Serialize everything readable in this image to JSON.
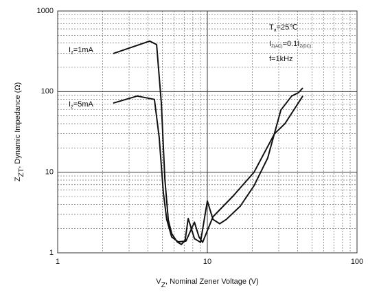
{
  "chart_data": {
    "type": "line",
    "xlabel": [
      "V",
      "Z",
      ", Nominal Zener Voltage (V)"
    ],
    "ylabel": [
      "Z",
      "ZT",
      ", Dynamic Impedance (Ω)"
    ],
    "xscale": "log",
    "yscale": "log",
    "grid": true,
    "xlim": [
      1,
      100
    ],
    "xticks": [
      1,
      10,
      100
    ],
    "ylim": [
      1,
      1000
    ],
    "yticks": [
      1,
      10,
      100,
      1000
    ],
    "annotations": [
      [
        "I",
        "z",
        "=1mA"
      ],
      [
        "I",
        "z",
        "=5mA"
      ],
      [
        "T",
        "a",
        "=25℃"
      ],
      [
        "I",
        "Z(AC)",
        "=0.1I",
        "Z(DC)"
      ],
      [
        "f=1kHz"
      ]
    ],
    "series": [
      {
        "color": "#111111",
        "x": [
          2.35,
          4.12,
          4.58,
          4.93,
          5.2,
          5.48,
          5.78,
          6.28,
          6.7,
          7.1,
          7.45,
          8.2,
          9.0,
          10.0,
          10.9,
          12.1,
          13.4,
          16.6,
          20.5,
          25.3,
          31,
          36.6,
          40.6,
          43.4
        ],
        "values": [
          297,
          423,
          383,
          72,
          8.3,
          2.56,
          1.73,
          1.37,
          1.27,
          1.42,
          2.67,
          1.5,
          1.35,
          4.4,
          2.6,
          2.3,
          2.6,
          3.8,
          6.8,
          15,
          59,
          88,
          97,
          111
        ]
      },
      {
        "color": "#111111",
        "x": [
          2.35,
          3.4,
          4.43,
          4.77,
          5.08,
          5.35,
          5.78,
          6.4,
          7.2,
          8.2,
          8.8,
          9.3,
          10.9,
          14.9,
          20.5,
          28.1,
          33,
          43.4
        ],
        "values": [
          72,
          88,
          80,
          27,
          5.6,
          2.6,
          1.57,
          1.37,
          1.4,
          2.4,
          1.57,
          1.35,
          2.8,
          5.1,
          10,
          30,
          40,
          88
        ]
      }
    ]
  }
}
